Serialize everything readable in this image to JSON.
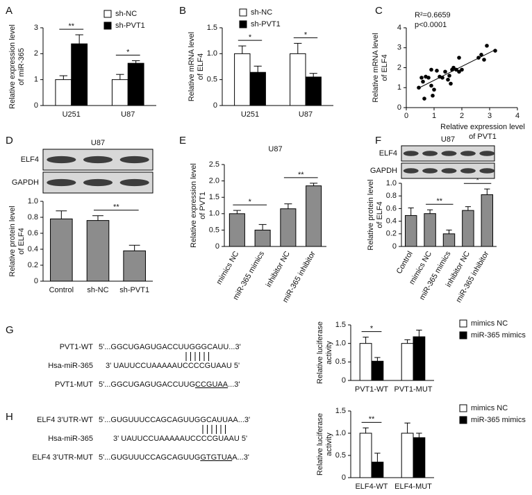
{
  "chart_data": [
    {
      "panel": "A",
      "type": "bar",
      "ylabel": [
        "Relative expression level",
        "of miR-365"
      ],
      "categories": [
        "U251",
        "U87"
      ],
      "series": [
        {
          "name": "sh-NC",
          "color": "#ffffff",
          "values": [
            1.0,
            1.0
          ],
          "errors": [
            0.15,
            0.2
          ]
        },
        {
          "name": "sh-PVT1",
          "color": "#000000",
          "values": [
            2.38,
            1.63
          ],
          "errors": [
            0.35,
            0.1
          ]
        }
      ],
      "ylim": [
        0,
        3
      ],
      "yticks": [
        0,
        1,
        2,
        3
      ],
      "legend": "upper right",
      "comparisons": [
        {
          "label": "**",
          "category": "U251"
        },
        {
          "label": "*",
          "category": "U87"
        }
      ]
    },
    {
      "panel": "B",
      "type": "bar",
      "ylabel": [
        "Relative mRNA level",
        "of ELF4"
      ],
      "categories": [
        "U251",
        "U87"
      ],
      "series": [
        {
          "name": "sh-NC",
          "color": "#ffffff",
          "values": [
            1.0,
            1.0
          ],
          "errors": [
            0.15,
            0.2
          ]
        },
        {
          "name": "sh-PVT1",
          "color": "#000000",
          "values": [
            0.64,
            0.55
          ],
          "errors": [
            0.12,
            0.07
          ]
        }
      ],
      "ylim": [
        0,
        1.5
      ],
      "yticks": [
        0,
        0.5,
        {
          "value": 1,
          "label": "1.0"
        },
        1.5
      ],
      "legend": "upper right",
      "comparisons": [
        {
          "label": "*",
          "category": "U251"
        },
        {
          "label": "*",
          "category": "U87"
        }
      ]
    },
    {
      "panel": "C",
      "type": "scatter",
      "xlabel": [
        "Relative expression level",
        "of PVT1"
      ],
      "ylabel": [
        "Relative mRNA level",
        "of ELF4"
      ],
      "annotations": [
        "R²=0.6659",
        "p<0.0001"
      ],
      "trendline": true,
      "color": "#000000",
      "x": [
        0.45,
        0.55,
        0.6,
        0.65,
        0.7,
        0.8,
        0.9,
        0.95,
        0.9,
        1.0,
        1.1,
        1.2,
        1.3,
        1.4,
        1.5,
        1.55,
        1.6,
        1.65,
        1.7,
        1.8,
        1.9,
        1.9,
        2.0,
        2.6,
        2.7,
        2.8,
        2.9,
        3.2
      ],
      "values": [
        1.0,
        1.5,
        1.3,
        0.45,
        1.55,
        1.5,
        1.1,
        0.6,
        1.9,
        0.9,
        1.85,
        1.55,
        1.5,
        1.8,
        1.4,
        1.6,
        1.2,
        1.9,
        2.0,
        1.9,
        2.5,
        1.8,
        1.9,
        2.5,
        2.65,
        2.4,
        3.1,
        2.85
      ],
      "xlim": [
        0,
        4
      ],
      "xticks": [
        0,
        1,
        2,
        3,
        4
      ],
      "ylim": [
        0,
        4
      ],
      "yticks": [
        0,
        1,
        2,
        3,
        4
      ]
    },
    {
      "panel": "D",
      "type": "bar",
      "blot": {
        "title": "U87",
        "rows": [
          "ELF4",
          "GAPDH"
        ]
      },
      "ylabel": [
        "Relative protein level",
        "of ELF4"
      ],
      "categories": [
        "Control",
        "sh-NC",
        "sh-PVT1"
      ],
      "values": [
        0.78,
        0.76,
        0.38
      ],
      "errors": [
        0.1,
        0.06,
        0.07
      ],
      "color": "#8c8c8c",
      "ylim": [
        0,
        1
      ],
      "yticks": [
        0,
        0.2,
        0.4,
        0.6,
        0.8,
        {
          "value": 1,
          "label": "1.0"
        }
      ],
      "comparisons": [
        {
          "label": "**",
          "categories": [
            "sh-NC",
            "sh-PVT1"
          ]
        }
      ]
    },
    {
      "panel": "E",
      "type": "bar",
      "title": "U87",
      "ylabel": [
        "Relative expression level",
        "of PVT1"
      ],
      "categories": [
        "mimics NC",
        "miR-365 mimics",
        "inhibitor NC",
        "miR-365 inhibitor"
      ],
      "values": [
        1.0,
        0.5,
        1.15,
        1.85
      ],
      "errors": [
        0.1,
        0.17,
        0.15,
        0.08
      ],
      "color": "#8c8c8c",
      "ylim": [
        0,
        2.5
      ],
      "yticks": [
        0,
        0.5,
        {
          "value": 1,
          "label": "1.0"
        },
        1.5,
        {
          "value": 2,
          "label": "2.0"
        },
        2.5
      ],
      "xtick_rotation": 60,
      "comparisons": [
        {
          "label": "*",
          "categories": [
            "mimics NC",
            "miR-365 mimics"
          ]
        },
        {
          "label": "**",
          "categories": [
            "inhibitor NC",
            "miR-365 inhibitor"
          ]
        }
      ]
    },
    {
      "panel": "F",
      "type": "bar",
      "blot": {
        "title": "U87",
        "rows": [
          "ELF4",
          "GAPDH"
        ]
      },
      "ylabel": [
        "Relative protein level",
        "of ELF4"
      ],
      "categories": [
        "Control",
        "mimics NC",
        "miR-365 mimics",
        "inhibitor NC",
        "miR-365 inhibitor"
      ],
      "values": [
        0.49,
        0.52,
        0.2,
        0.57,
        0.82
      ],
      "errors": [
        0.12,
        0.06,
        0.06,
        0.06,
        0.09
      ],
      "color": "#8c8c8c",
      "ylim": [
        0,
        1
      ],
      "yticks": [
        0,
        0.2,
        0.4,
        0.6,
        0.8,
        {
          "value": 1,
          "label": "1.0"
        }
      ],
      "xtick_rotation": 60,
      "comparisons": [
        {
          "label": "**",
          "categories": [
            "mimics NC",
            "miR-365 mimics"
          ]
        },
        {
          "label": "*",
          "categories": [
            "inhibitor NC",
            "miR-365 inhibitor"
          ]
        }
      ]
    },
    {
      "type": "bar",
      "ylabel": [
        "Relative luciferase",
        "activity"
      ],
      "categories": [
        "PVT1-WT",
        "PVT1-MUT"
      ],
      "series": [
        {
          "name": "mimics NC",
          "color": "#ffffff",
          "values": [
            1.0,
            1.0
          ],
          "errors": [
            0.17,
            0.1
          ]
        },
        {
          "name": "miR-365 mimics",
          "color": "#000000",
          "values": [
            0.52,
            1.18
          ],
          "errors": [
            0.1,
            0.18
          ]
        }
      ],
      "ylim": [
        0,
        1.5
      ],
      "yticks": [
        0,
        0.5,
        {
          "value": 1,
          "label": "1.0"
        },
        1.5
      ],
      "legend": "right",
      "comparisons": [
        {
          "label": "*",
          "category": "PVT1-WT"
        }
      ]
    },
    {
      "type": "bar",
      "ylabel": [
        "Relative luciferase",
        "activity"
      ],
      "categories": [
        "ELF4-WT",
        "ELF4-MUT"
      ],
      "series": [
        {
          "name": "mimics NC",
          "color": "#ffffff",
          "values": [
            1.0,
            1.0
          ],
          "errors": [
            0.12,
            0.23
          ]
        },
        {
          "name": "miR-365 mimics",
          "color": "#000000",
          "values": [
            0.35,
            0.9
          ],
          "errors": [
            0.2,
            0.1
          ]
        }
      ],
      "ylim": [
        0,
        1.5
      ],
      "yticks": [
        0,
        0.5,
        {
          "value": 1,
          "label": "1.0"
        },
        1.5
      ],
      "legend": "right",
      "comparisons": [
        {
          "label": "**",
          "category": "ELF4-WT"
        }
      ]
    }
  ],
  "diagrams": [
    {
      "panel": "G",
      "rows": [
        {
          "label": "PVT1-WT",
          "seq": [
            "5'...GGCUGAGUGACCUUGGGCAUU...3'"
          ]
        },
        {
          "label": "Hsa-miR-365",
          "seq": [
            "3' UAUUCCUAAAAAUCCCCGUAAU 5'"
          ]
        },
        {
          "label": "PVT1-MUT",
          "seq": [
            "5'...GGCUGAGUGACCUUG",
            "CCGUAA",
            "...3'"
          ]
        }
      ]
    },
    {
      "panel": "H",
      "rows": [
        {
          "label": "ELF4 3'UTR-WT",
          "seq": [
            "5'...GUGUUUCCAGCAGUUGGCAUUAA...3'"
          ]
        },
        {
          "label": "Hsa-miR-365",
          "seq": [
            "3' UAUUCCUAAAAAUCCCCGUAAU 5'"
          ]
        },
        {
          "label": "ELF4 3'UTR-MUT",
          "seq": [
            "5'...GUGUUUCCAGCAGUUG",
            "GTGTUA",
            "A...3'"
          ]
        }
      ]
    }
  ]
}
